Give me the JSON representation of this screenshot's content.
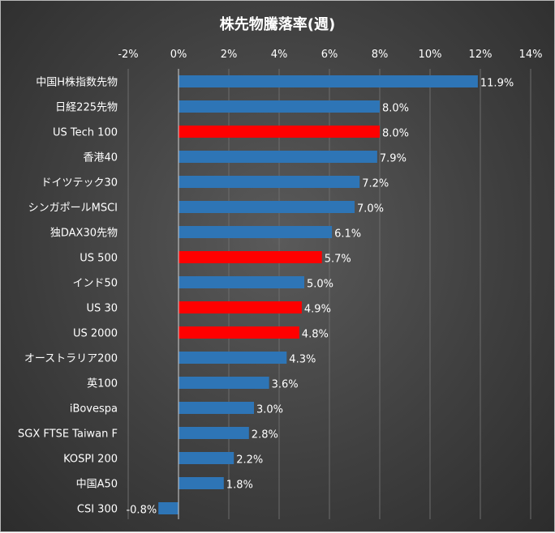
{
  "chart_data": {
    "type": "bar",
    "orientation": "horizontal",
    "title": "株先物騰落率(週)",
    "xlabel": "",
    "ylabel": "",
    "xlim": [
      -2,
      14
    ],
    "x_ticks": [
      "-2%",
      "0%",
      "2%",
      "4%",
      "6%",
      "8%",
      "10%",
      "12%",
      "14%"
    ],
    "grid": true,
    "legend": "none",
    "default_color": "#2e75b6",
    "highlight_color": "#ff0000",
    "categories": [
      "中国H株指数先物",
      "日経225先物",
      "US Tech 100",
      "香港40",
      "ドイツテック30",
      "シンガポールMSCI",
      "独DAX30先物",
      "US 500",
      "インド50",
      "US 30",
      "US 2000",
      "オーストラリア200",
      "英100",
      "iBovespa",
      "SGX FTSE Taiwan F",
      "KOSPI 200",
      "中国A50",
      "CSI 300"
    ],
    "values": [
      11.9,
      8.0,
      8.0,
      7.9,
      7.2,
      7.0,
      6.1,
      5.7,
      5.0,
      4.9,
      4.8,
      4.3,
      3.6,
      3.0,
      2.8,
      2.2,
      1.8,
      -0.8
    ],
    "value_labels": [
      "11.9%",
      "8.0%",
      "8.0%",
      "7.9%",
      "7.2%",
      "7.0%",
      "6.1%",
      "5.7%",
      "5.0%",
      "4.9%",
      "4.8%",
      "4.3%",
      "3.6%",
      "3.0%",
      "2.8%",
      "2.2%",
      "1.8%",
      "-0.8%"
    ],
    "highlighted": [
      "US Tech 100",
      "US 500",
      "US 30",
      "US 2000"
    ]
  }
}
